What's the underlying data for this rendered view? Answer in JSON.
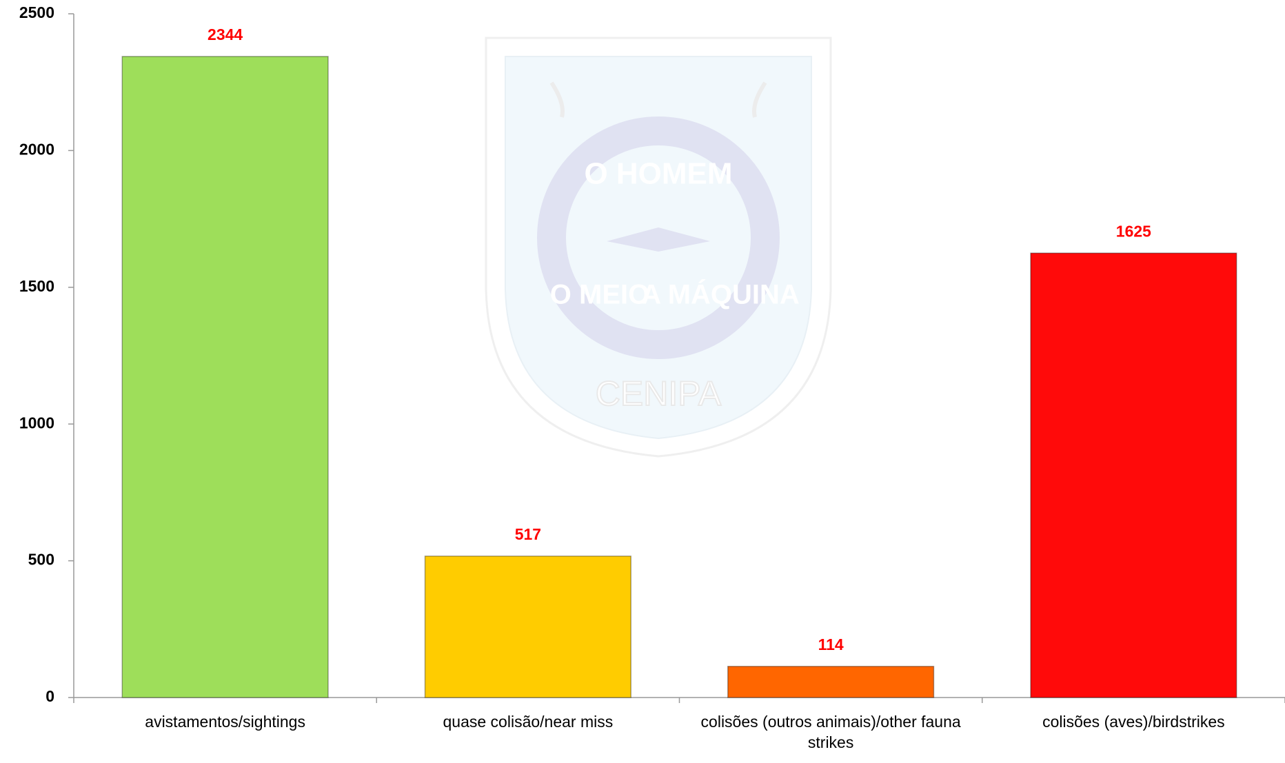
{
  "chart_data": {
    "type": "bar",
    "categories": [
      "avistamentos/sightings",
      "quase colisão/near miss",
      "colisões (outros animais)/other fauna strikes",
      "colisões (aves)/birdstrikes"
    ],
    "values": [
      2344,
      517,
      114,
      1625
    ],
    "colors": [
      "#9ede5a",
      "#ffcc00",
      "#ff6600",
      "#ff0a0a"
    ],
    "value_label_color": "#ff0000",
    "ylim": [
      0,
      2500
    ],
    "yticks": [
      0,
      500,
      1000,
      1500,
      2000,
      2500
    ],
    "grid": false,
    "watermark": [
      "O HOMEM",
      "O MEIO",
      "A MÁQUINA",
      "CENIPA"
    ]
  }
}
